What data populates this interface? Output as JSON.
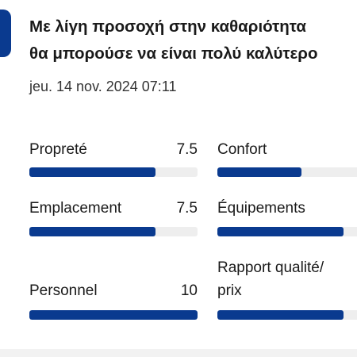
{
  "review": {
    "title_line1": "Με λίγη προσοχή στην καθαριότητα",
    "title_line2": "θα μπορούσε να είναι πολύ καλύτερο",
    "date": "jeu. 14 nov. 2024 07:11"
  },
  "colors": {
    "accent": "#0a3a8f",
    "track": "#eeeeee"
  },
  "scores": [
    {
      "label": "Propreté",
      "score": "7.5",
      "fraction": 0.75
    },
    {
      "label": "Confort",
      "score": "",
      "fraction": 0.5
    },
    {
      "label": "Emplacement",
      "score": "7.5",
      "fraction": 0.75
    },
    {
      "label": "Équipements",
      "score": "",
      "fraction": 0.75
    },
    {
      "label": "Personnel",
      "score": "10",
      "fraction": 1.0
    },
    {
      "label_line1": "Rapport qualité/",
      "label_line2": "prix",
      "score": "",
      "fraction": 0.75
    }
  ]
}
